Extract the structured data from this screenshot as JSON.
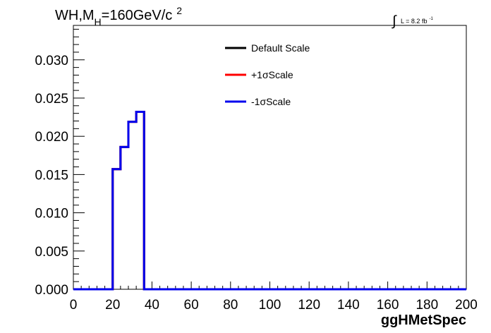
{
  "chart_data": {
    "type": "line",
    "style": "step-histogram",
    "title": "WH,M",
    "title_sub": "H",
    "title_rest": "=160GeV/c",
    "title_sup": "2",
    "lumi_label": "L = 8.2 fb",
    "lumi_sup": "-1",
    "xlabel": "ggHMetSpec",
    "ylabel": "",
    "xlim": [
      0,
      200
    ],
    "ylim": [
      0,
      0.0345
    ],
    "x_ticks": [
      0,
      20,
      40,
      60,
      80,
      100,
      120,
      140,
      160,
      180,
      200
    ],
    "x_tick_labels": [
      "0",
      "20",
      "40",
      "60",
      "80",
      "100",
      "120",
      "140",
      "160",
      "180",
      "200"
    ],
    "y_ticks": [
      0,
      0.005,
      0.01,
      0.015,
      0.02,
      0.025,
      0.03
    ],
    "y_tick_labels": [
      "0.000",
      "0.005",
      "0.010",
      "0.015",
      "0.020",
      "0.025",
      "0.030"
    ],
    "grid": false,
    "legend_position": "top-center",
    "bin_edges": [
      0,
      20,
      24,
      28,
      32,
      36,
      200
    ],
    "series": [
      {
        "name": "Default Scale",
        "color": "#000000",
        "values": [
          0,
          0.0157,
          0.0186,
          0.0219,
          0.0232,
          0
        ]
      },
      {
        "name": "+1σScale",
        "color": "#ff0000",
        "values": [
          0,
          0.0157,
          0.0186,
          0.0219,
          0.0232,
          0
        ]
      },
      {
        "name": "-1σScale",
        "color": "#0000ee",
        "values": [
          0,
          0.0157,
          0.0186,
          0.0219,
          0.0232,
          0
        ]
      }
    ]
  }
}
